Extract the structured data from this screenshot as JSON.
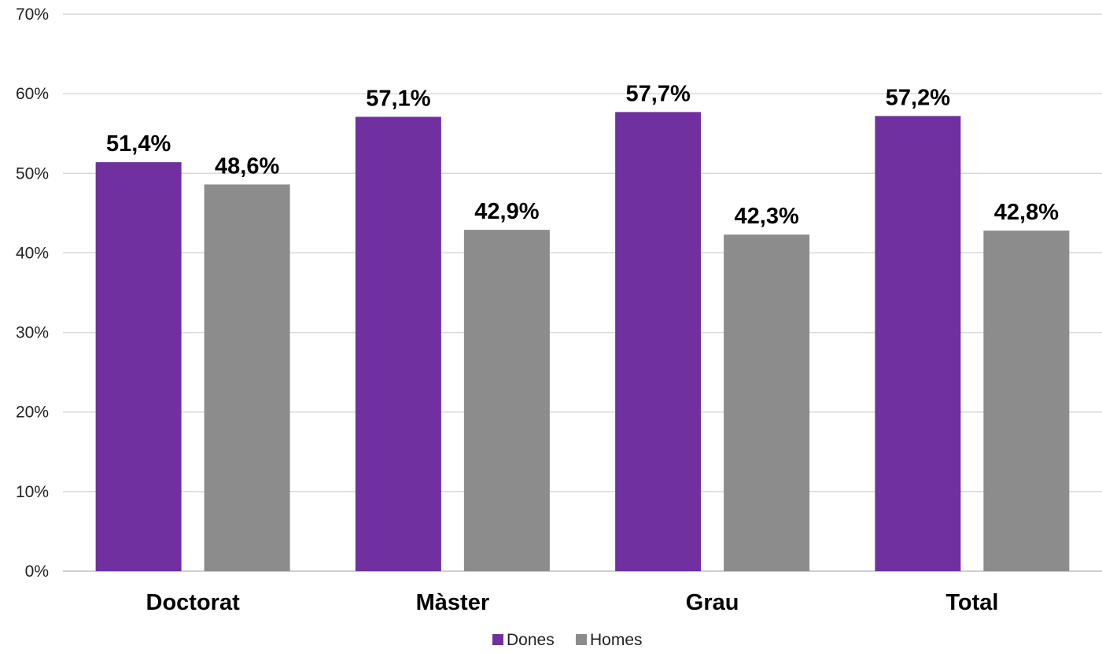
{
  "chart_data": {
    "type": "bar",
    "categories": [
      "Doctorat",
      "Màster",
      "Grau",
      "Total"
    ],
    "series": [
      {
        "name": "Dones",
        "color": "#7030a0",
        "values": [
          51.4,
          57.1,
          57.7,
          57.2
        ],
        "labels": [
          "51,4%",
          "57,1%",
          "57,7%",
          "57,2%"
        ]
      },
      {
        "name": "Homes",
        "color": "#8c8c8c",
        "values": [
          48.6,
          42.9,
          42.3,
          42.8
        ],
        "labels": [
          "48,6%",
          "42,9%",
          "42,3%",
          "42,8%"
        ]
      }
    ],
    "ylim": [
      0,
      70
    ],
    "yticks": [
      0,
      10,
      20,
      30,
      40,
      50,
      60,
      70
    ],
    "ytick_labels": [
      "0%",
      "10%",
      "20%",
      "30%",
      "40%",
      "50%",
      "60%",
      "70%"
    ],
    "grid": true,
    "legend_position": "bottom-center"
  }
}
